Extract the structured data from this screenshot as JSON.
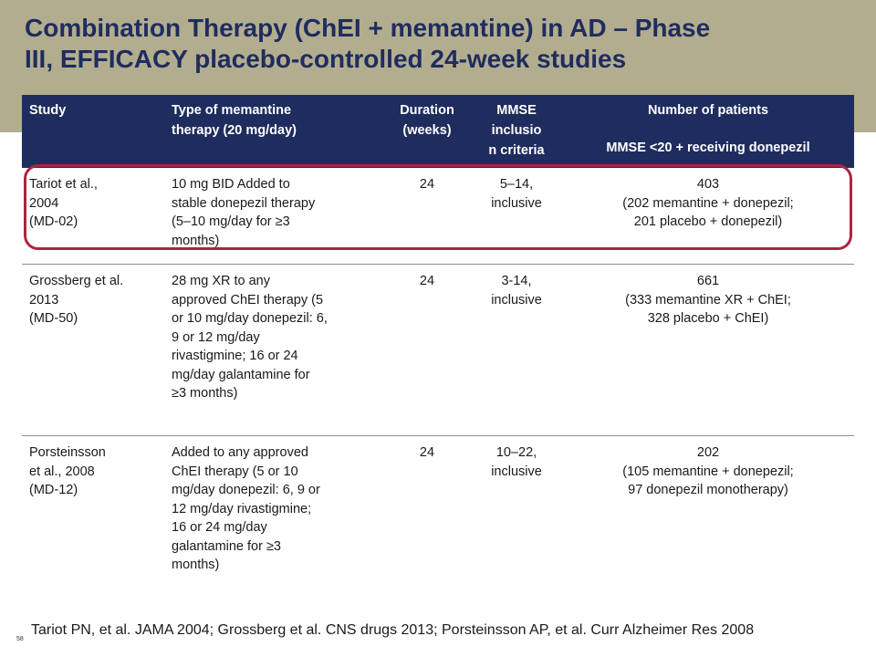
{
  "title": {
    "line1": "Combination Therapy (ChEI + memantine) in AD – Phase",
    "line2": "III, EFFICACY placebo-controlled 24-week studies"
  },
  "table": {
    "headers": {
      "study": "Study",
      "type": [
        "Type of memantine",
        "therapy (20 mg/day)"
      ],
      "duration": [
        "Duration",
        "(weeks)"
      ],
      "mmse": [
        "MMSE",
        "inclusio",
        "n criteria"
      ],
      "patients": "Number of patients",
      "patients_sub": "MMSE <20 + receiving donepezil"
    },
    "rows": [
      {
        "study": [
          "Tariot et al.,",
          "2004",
          "(MD-02)"
        ],
        "type": [
          "10 mg BID Added to",
          "stable donepezil therapy",
          "(5–10 mg/day for ≥3",
          "months)"
        ],
        "duration": "24",
        "mmse": [
          "5–14,",
          "inclusive"
        ],
        "patients": [
          "403",
          "(202 memantine + donepezil;",
          "201 placebo + donepezil)"
        ]
      },
      {
        "study": [
          "Grossberg et al.",
          "2013",
          "(MD-50)"
        ],
        "type": [
          "28 mg XR to any",
          "approved ChEI therapy (5",
          "or 10 mg/day donepezil: 6,",
          "9 or 12 mg/day",
          "rivastigmine; 16 or 24",
          "mg/day galantamine for",
          "≥3 months)"
        ],
        "duration": "24",
        "mmse": [
          "3-14,",
          "inclusive"
        ],
        "patients": [
          "661",
          "(333 memantine XR + ChEI;",
          "328 placebo + ChEI)"
        ]
      },
      {
        "study": [
          "Porsteinsson",
          "et al., 2008",
          "(MD-12)"
        ],
        "type": [
          "Added to any approved",
          "ChEI therapy (5 or 10",
          "mg/day donepezil: 6, 9 or",
          "12 mg/day rivastigmine;",
          "16 or 24 mg/day",
          "galantamine for ≥3",
          "months)"
        ],
        "duration": "24",
        "mmse": [
          "10–22,",
          "inclusive"
        ],
        "patients": [
          "202",
          "(105 memantine + donepezil;",
          "97 donepezil monotherapy)"
        ]
      }
    ]
  },
  "slide_number": "58",
  "footer": "Tariot PN, et al. JAMA 2004; Grossberg et al. CNS drugs 2013; Porsteinsson AP, et al. Curr Alzheimer Res 2008",
  "colors": {
    "title_band": "#b2ad8f",
    "header_bg": "#1f2c5e",
    "highlight": "#b0233f"
  }
}
